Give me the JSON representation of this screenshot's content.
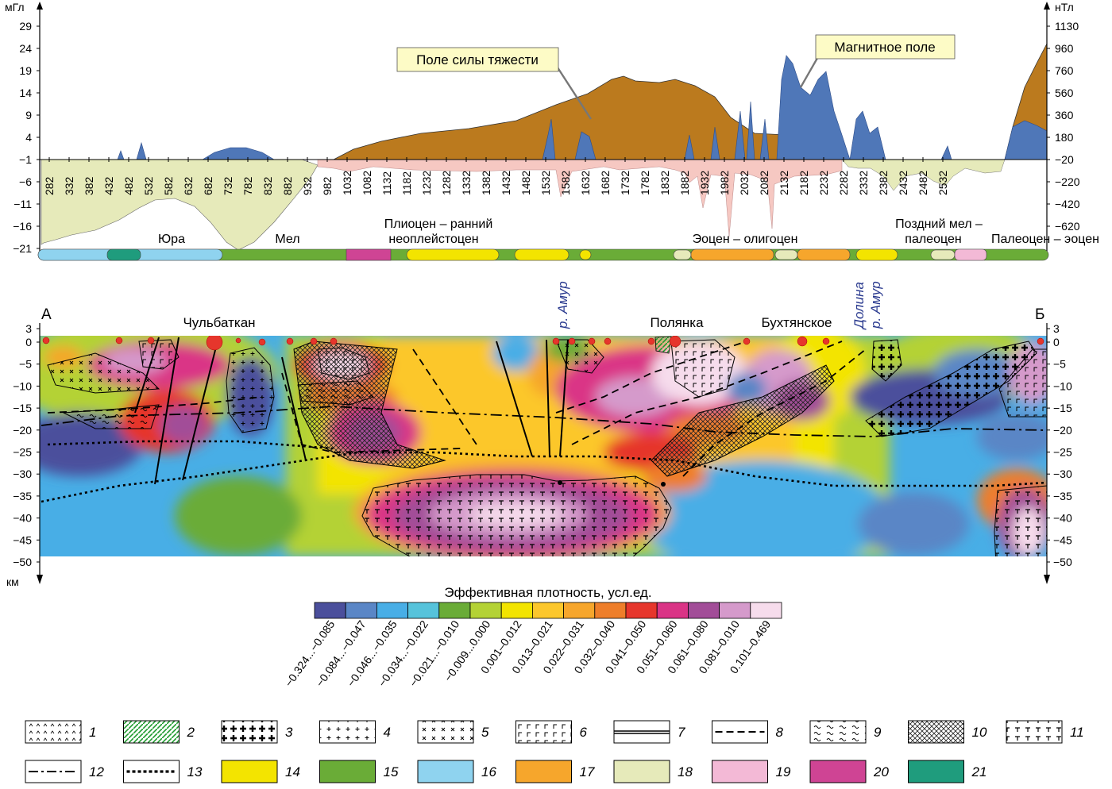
{
  "top_panel": {
    "left_axis": {
      "unit": "мГл",
      "ticks": [
        "29",
        "24",
        "19",
        "14",
        "9",
        "4",
        "−1",
        "−6",
        "−11",
        "−16",
        "−21"
      ]
    },
    "right_axis": {
      "unit": "нТл",
      "ticks": [
        "1130",
        "960",
        "760",
        "560",
        "360",
        "180",
        "−20",
        "−220",
        "−420",
        "−620"
      ]
    },
    "pickets": [
      "282",
      "332",
      "382",
      "432",
      "482",
      "532",
      "582",
      "632",
      "682",
      "732",
      "782",
      "832",
      "882",
      "932",
      "982",
      "1032",
      "1082",
      "1132",
      "1182",
      "1232",
      "1282",
      "1332",
      "1382",
      "1432",
      "1482",
      "1532",
      "1582",
      "1632",
      "1682",
      "1732",
      "1782",
      "1832",
      "1882",
      "1932",
      "1982",
      "2032",
      "2082",
      "2132",
      "2182",
      "2232",
      "2282",
      "2332",
      "2382",
      "2432",
      "2482",
      "2532"
    ],
    "callout_gravity": "Поле силы тяжести",
    "callout_magnetic": "Магнитное поле",
    "ages": {
      "jura": "Юра",
      "mel": "Мел",
      "pliocene_1": "Плиоцен – ранний",
      "pliocene_2": "неоплейстоцен",
      "eocene": "Эоцен – олигоцен",
      "late_cret_1": "Поздний мел –",
      "late_cret_2": "палеоцен",
      "paleocene": "Палеоцен – эоцен"
    },
    "colors": {
      "gravity_fill": "#bb7a1e",
      "magnetic_fill": "#4f77b8",
      "negative_pink": "#f6c8c2",
      "negative_green": "#e6eaba"
    }
  },
  "section": {
    "point_a": "А",
    "point_b": "Б",
    "depth_unit": "км",
    "depth_ticks": [
      "3",
      "0",
      "−5",
      "−10",
      "−15",
      "−20",
      "−25",
      "−30",
      "−35",
      "−40",
      "−45",
      "−50"
    ],
    "labels": {
      "chulbatkan": "Чульбаткан",
      "polyanka": "Полянка",
      "bukhtyanskoe": "Бухтянское",
      "amur_1": "р. Амур",
      "dolina": "Долина",
      "amur_2": "р. Амур"
    }
  },
  "density_scale": {
    "title": "Эффективная плотность, усл.ед.",
    "bins": [
      {
        "label": "−0.324...−0.085",
        "color": "#4b4f9c"
      },
      {
        "label": "−0.084...−0.047",
        "color": "#5a86c6"
      },
      {
        "label": "−0.046...−0.035",
        "color": "#48aee6"
      },
      {
        "label": "−0.034...−0.022",
        "color": "#56c3db"
      },
      {
        "label": "−0.021...−0.010",
        "color": "#6aac37"
      },
      {
        "label": "−0.009...0.000",
        "color": "#b4d235"
      },
      {
        "label": "0.001–0.012",
        "color": "#f3e400"
      },
      {
        "label": "0.013–0.021",
        "color": "#fcc72c"
      },
      {
        "label": "0.022–0.031",
        "color": "#f6a62c"
      },
      {
        "label": "0.032–0.040",
        "color": "#ee7e2a"
      },
      {
        "label": "0.041–0.050",
        "color": "#e6362c"
      },
      {
        "label": "0.051–0.060",
        "color": "#da3486"
      },
      {
        "label": "0.061–0.080",
        "color": "#a24d98"
      },
      {
        "label": "0.081–0.010",
        "color": "#d59acb"
      },
      {
        "label": "0.101–0.469",
        "color": "#f6dcec"
      }
    ]
  },
  "legend": [
    {
      "num": "1",
      "kind": "pattern",
      "symbol": "caret"
    },
    {
      "num": "2",
      "kind": "pattern",
      "symbol": "green-hatch"
    },
    {
      "num": "3",
      "kind": "pattern",
      "symbol": "bold-cross"
    },
    {
      "num": "4",
      "kind": "pattern",
      "symbol": "cross"
    },
    {
      "num": "5",
      "kind": "pattern",
      "symbol": "x-mark"
    },
    {
      "num": "6",
      "kind": "pattern",
      "symbol": "gamma"
    },
    {
      "num": "7",
      "kind": "line",
      "symbol": "solid"
    },
    {
      "num": "8",
      "kind": "line",
      "symbol": "dashed"
    },
    {
      "num": "9",
      "kind": "pattern",
      "symbol": "wave"
    },
    {
      "num": "10",
      "kind": "pattern",
      "symbol": "crosshatch"
    },
    {
      "num": "11",
      "kind": "pattern",
      "symbol": "t-mark"
    },
    {
      "num": "12",
      "kind": "line",
      "symbol": "dash-dot"
    },
    {
      "num": "13",
      "kind": "line",
      "symbol": "bold-dotted"
    },
    {
      "num": "14",
      "kind": "color",
      "color": "#f3e400"
    },
    {
      "num": "15",
      "kind": "color",
      "color": "#6aac37"
    },
    {
      "num": "16",
      "kind": "color",
      "color": "#8fd3ef"
    },
    {
      "num": "17",
      "kind": "color",
      "color": "#f6a62c"
    },
    {
      "num": "18",
      "kind": "color",
      "color": "#e6eaba"
    },
    {
      "num": "19",
      "kind": "color",
      "color": "#f3b9d6"
    },
    {
      "num": "20",
      "kind": "color",
      "color": "#cf4494"
    },
    {
      "num": "21",
      "kind": "color",
      "color": "#1f9c7d"
    }
  ]
}
